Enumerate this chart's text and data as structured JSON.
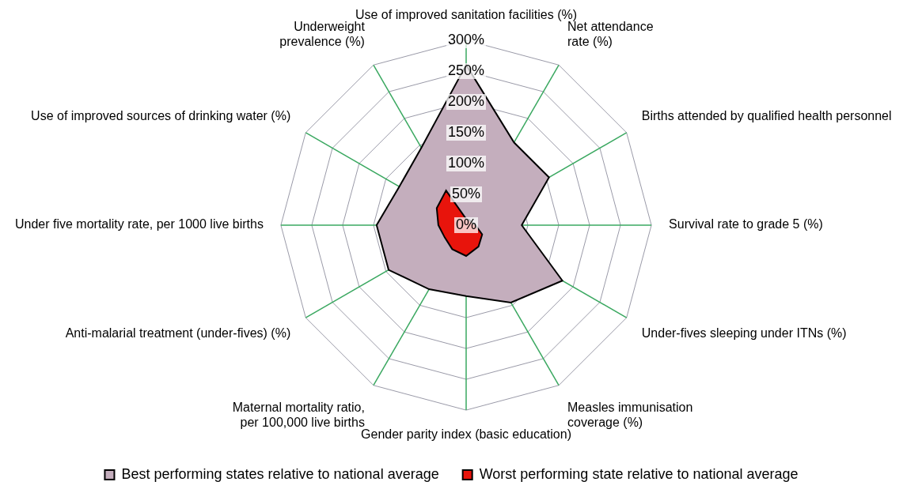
{
  "chart_data": {
    "type": "radar",
    "categories": [
      "Use of improved sanitation facilities (%)",
      "Net attendance rate (%)",
      "Births attended by qualified health personnel",
      "Survival rate to grade 5 (%)",
      "Under-fives sleeping under ITNs (%)",
      "Measles immunisation coverage (%)",
      "Gender parity index (basic education)",
      "Maternal mortality ratio, per 100,000 live births",
      "Anti-malarial treatment (under-fives) (%)",
      "Under five mortality rate, per 1000 live births",
      "Use of improved sources of drinking water (%)",
      "Underweight prevalence (%)"
    ],
    "series": [
      {
        "name": "Best performing states relative to national average",
        "color": "#c4aebd",
        "values": [
          260,
          155,
          155,
          90,
          180,
          145,
          115,
          120,
          145,
          145,
          125,
          145
        ]
      },
      {
        "name": "Worst performing state relative to national average",
        "color": "#e8140c",
        "values": [
          10,
          10,
          10,
          15,
          30,
          40,
          50,
          45,
          40,
          45,
          55,
          65
        ]
      }
    ],
    "ylim": [
      0,
      300
    ],
    "yticks": [
      {
        "value": 0,
        "label": "0%"
      },
      {
        "value": 50,
        "label": "50%"
      },
      {
        "value": 100,
        "label": "100%"
      },
      {
        "value": 150,
        "label": "150%"
      },
      {
        "value": 200,
        "label": "200%"
      },
      {
        "value": 250,
        "label": "250%"
      },
      {
        "value": 300,
        "label": "300%"
      }
    ],
    "grid": true,
    "legend": "bottom",
    "marker": "none"
  }
}
